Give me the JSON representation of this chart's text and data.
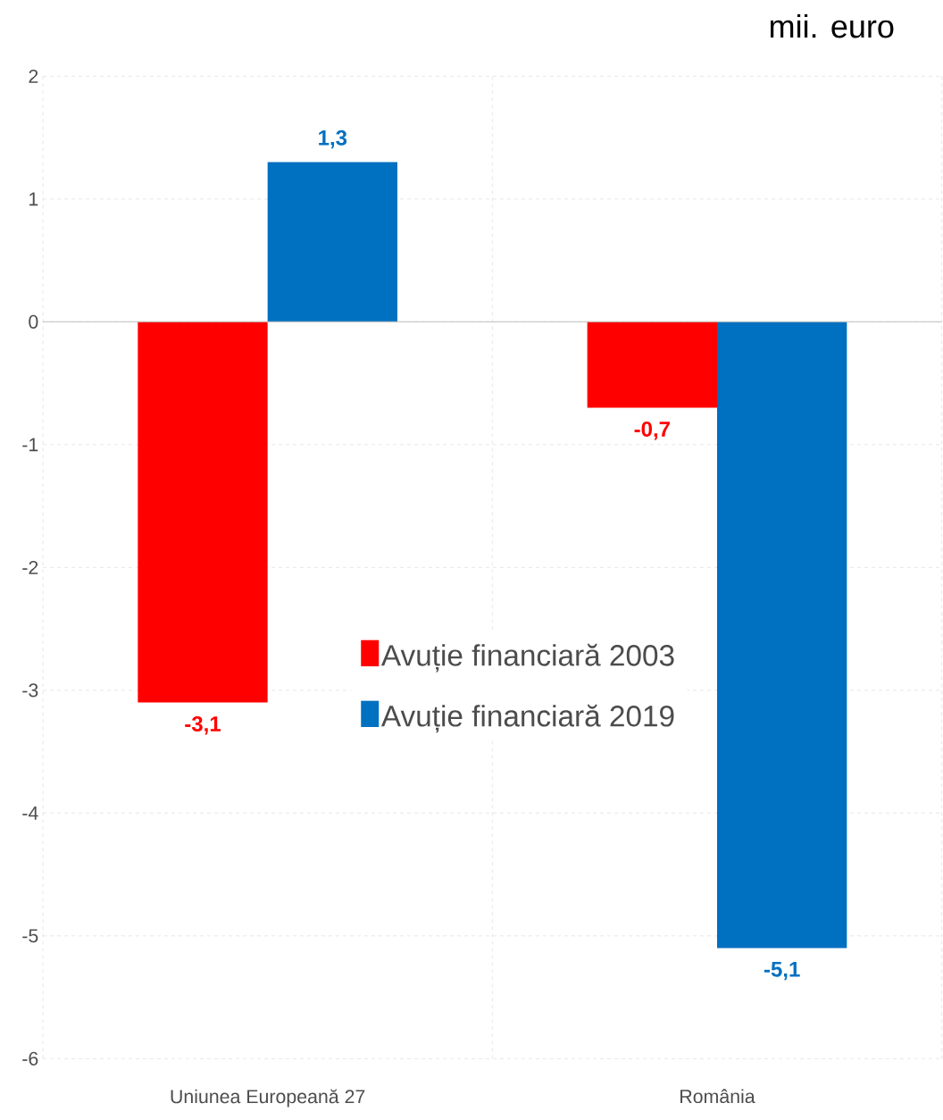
{
  "chart_data": {
    "type": "bar",
    "title": "mii. euro",
    "categories": [
      "Uniunea Europeană 27",
      "România"
    ],
    "series": [
      {
        "name": "Avuție financiară 2003",
        "color": "#ff0000",
        "values": [
          -3.1,
          -0.7
        ],
        "value_labels": [
          "-3,1",
          "-0,7"
        ]
      },
      {
        "name": "Avuție financiară 2019",
        "color": "#0070c0",
        "values": [
          1.3,
          -5.1
        ],
        "value_labels": [
          "1,3",
          "-5,1"
        ]
      }
    ],
    "ylim": [
      -6,
      2
    ],
    "yticks": [
      -6,
      -5,
      -4,
      -3,
      -2,
      -1,
      0,
      1,
      2
    ],
    "grid": true,
    "legend": "center"
  }
}
